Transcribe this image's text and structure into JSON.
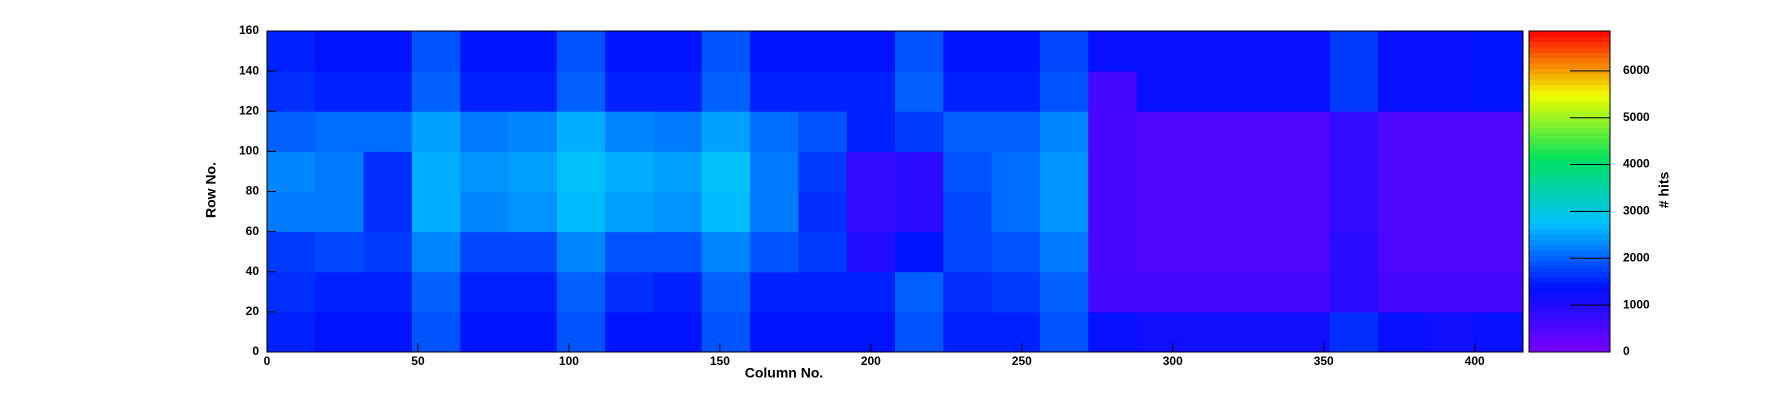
{
  "chart_data": {
    "type": "heatmap",
    "x_label": "Column No.",
    "y_label": "Row No.",
    "z_label": "# hits",
    "xbins": [
      0,
      16,
      32,
      48,
      64,
      80,
      96,
      112,
      128,
      144,
      160,
      176,
      192,
      208,
      224,
      240,
      256,
      272,
      288,
      304,
      320,
      336,
      352,
      368,
      384,
      400,
      416
    ],
    "ybins": [
      0,
      20,
      40,
      60,
      80,
      100,
      120,
      140,
      160
    ],
    "values": [
      [
        1500,
        1400,
        1400,
        1900,
        1400,
        1400,
        1900,
        1400,
        1400,
        1900,
        1400,
        1400,
        1400,
        1900,
        1500,
        1500,
        1900,
        1300,
        1200,
        1200,
        1200,
        1200,
        1600,
        1300,
        1200,
        1300
      ],
      [
        1600,
        1500,
        1500,
        2000,
        1500,
        1500,
        2000,
        1600,
        1500,
        2000,
        1500,
        1500,
        1500,
        2000,
        1600,
        1700,
        2000,
        600,
        600,
        600,
        600,
        600,
        900,
        600,
        600,
        600
      ],
      [
        1700,
        1800,
        1700,
        2300,
        1800,
        1800,
        2300,
        1900,
        1900,
        2300,
        1900,
        1700,
        1000,
        1400,
        1800,
        1900,
        2200,
        550,
        500,
        500,
        500,
        500,
        900,
        500,
        500,
        500
      ],
      [
        2200,
        2200,
        1600,
        2600,
        2300,
        2400,
        2700,
        2500,
        2400,
        2700,
        2200,
        1600,
        800,
        900,
        1800,
        2100,
        2400,
        550,
        500,
        500,
        500,
        500,
        800,
        500,
        500,
        500
      ],
      [
        2300,
        2200,
        1600,
        2600,
        2400,
        2500,
        2800,
        2600,
        2500,
        2800,
        2200,
        1700,
        800,
        900,
        1900,
        2100,
        2400,
        550,
        500,
        500,
        500,
        500,
        800,
        500,
        500,
        500
      ],
      [
        2000,
        2100,
        2100,
        2500,
        2200,
        2300,
        2600,
        2300,
        2200,
        2500,
        2100,
        1900,
        1500,
        1700,
        2000,
        2000,
        2300,
        550,
        500,
        500,
        500,
        500,
        800,
        500,
        500,
        500
      ],
      [
        1600,
        1500,
        1500,
        2000,
        1500,
        1500,
        2000,
        1500,
        1500,
        2000,
        1500,
        1500,
        1500,
        2000,
        1500,
        1500,
        1900,
        600,
        1300,
        1300,
        1300,
        1300,
        1700,
        1300,
        1300,
        1400
      ],
      [
        1500,
        1400,
        1400,
        1900,
        1400,
        1400,
        1900,
        1400,
        1400,
        1900,
        1400,
        1400,
        1400,
        1900,
        1400,
        1400,
        1800,
        1300,
        1300,
        1300,
        1300,
        1300,
        1700,
        1300,
        1300,
        1400
      ]
    ],
    "xlim": [
      0,
      416
    ],
    "ylim": [
      0,
      160
    ],
    "zlim": [
      0,
      6850
    ],
    "xticks": [
      0,
      50,
      100,
      150,
      200,
      250,
      300,
      350,
      400
    ],
    "yticks": [
      0,
      20,
      40,
      60,
      80,
      100,
      120,
      140,
      160
    ],
    "zticks": [
      0,
      1000,
      2000,
      3000,
      4000,
      5000,
      6000
    ],
    "colormap": [
      "#7a00ff",
      "#0010ff",
      "#00c0ff",
      "#00e060",
      "#f0ff00",
      "#ff0000"
    ]
  }
}
